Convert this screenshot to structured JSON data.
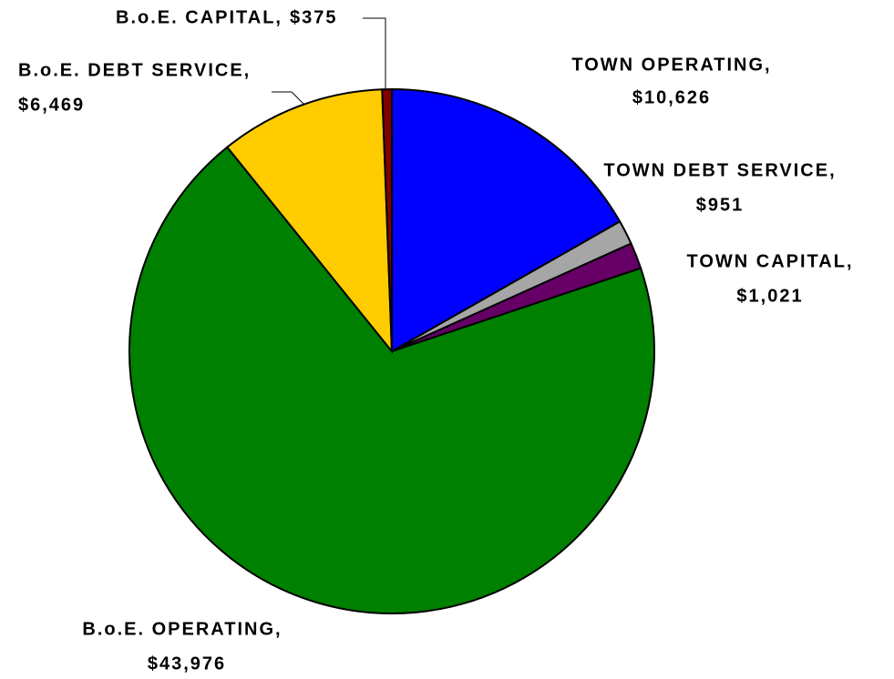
{
  "chart_data": {
    "type": "pie",
    "categories": [
      "TOWN OPERATING,",
      "TOWN DEBT SERVICE,",
      "TOWN CAPITAL,",
      "B.o.E. OPERATING,",
      "B.o.E. DEBT SERVICE,",
      "B.o.E. CAPITAL,"
    ],
    "values": [
      10626,
      951,
      1021,
      43976,
      6469,
      375
    ],
    "value_labels": [
      "$10,626",
      "$951",
      "$1,021",
      "$43,976",
      "$6,469",
      "$375"
    ],
    "colors": [
      "#0000ff",
      "#a6a6a6",
      "#660066",
      "#008000",
      "#ffcc00",
      "#800000"
    ]
  }
}
